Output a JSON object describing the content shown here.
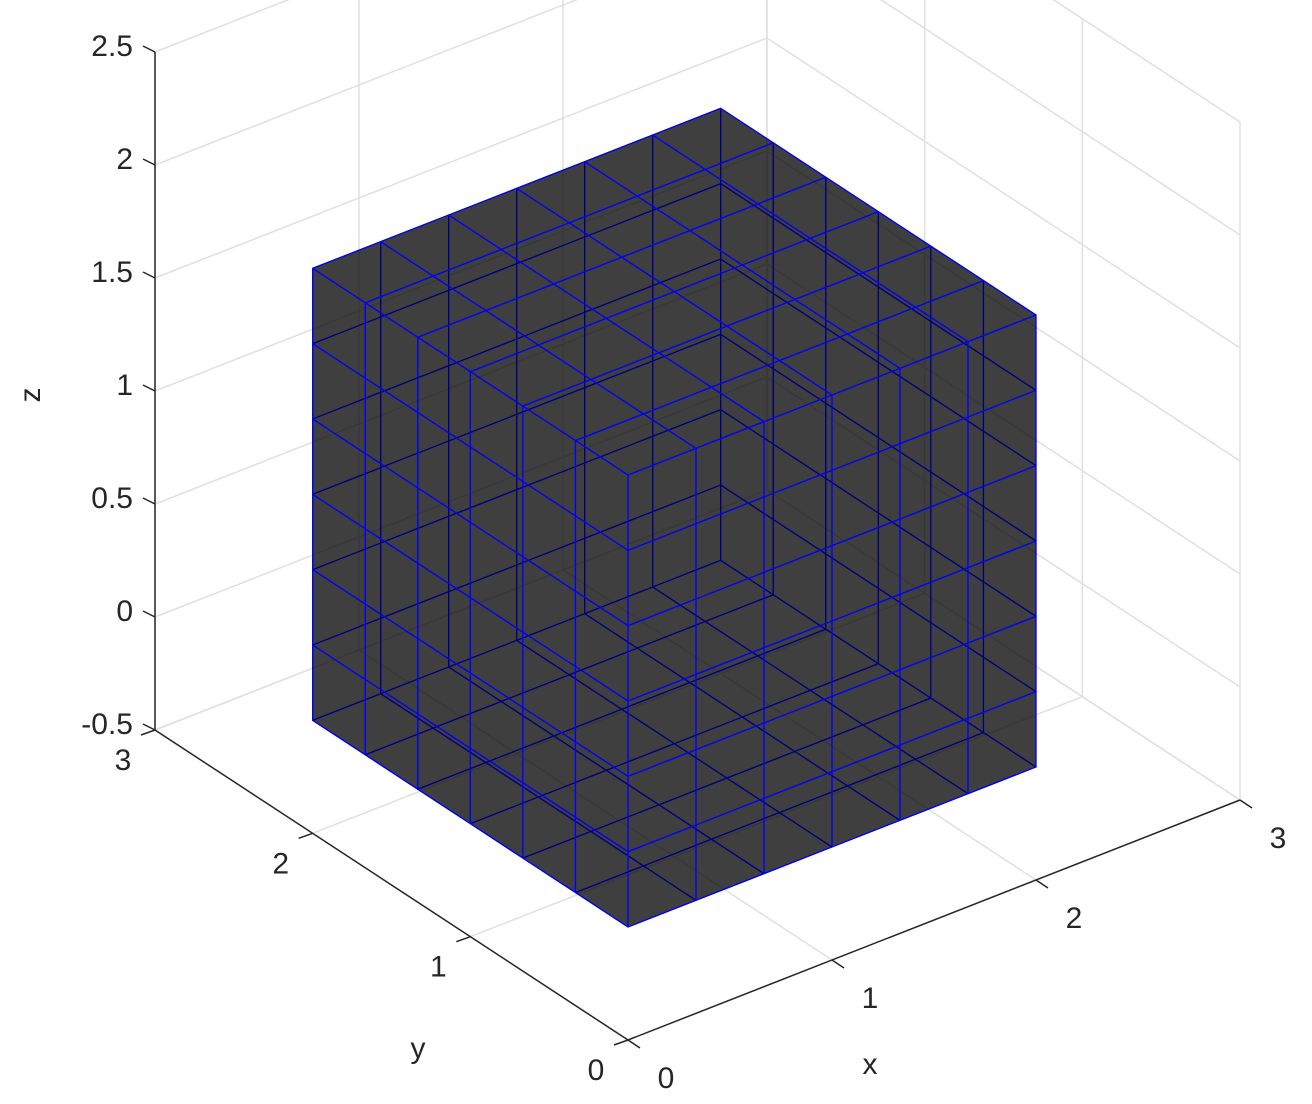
{
  "chart_data": {
    "type": "mesh3d",
    "xlabel": "x",
    "ylabel": "y",
    "zlabel": "z",
    "xlim": [
      0,
      3
    ],
    "ylim": [
      0,
      3
    ],
    "zlim": [
      -0.5,
      2.5
    ],
    "xticks": [
      0,
      1,
      2,
      3
    ],
    "yticks": [
      0,
      1,
      2,
      3
    ],
    "zticks": [
      -0.5,
      0,
      0.5,
      1,
      1.5,
      2,
      2.5
    ],
    "grid": true,
    "grid_color": "#e0e0e0",
    "solid": {
      "xrange": [
        0,
        2
      ],
      "yrange": [
        0,
        2
      ],
      "zrange": [
        0,
        2
      ],
      "cells": 6,
      "edge_color": "#0000ff",
      "face_alpha": 0.5,
      "colormap": "parula"
    }
  }
}
